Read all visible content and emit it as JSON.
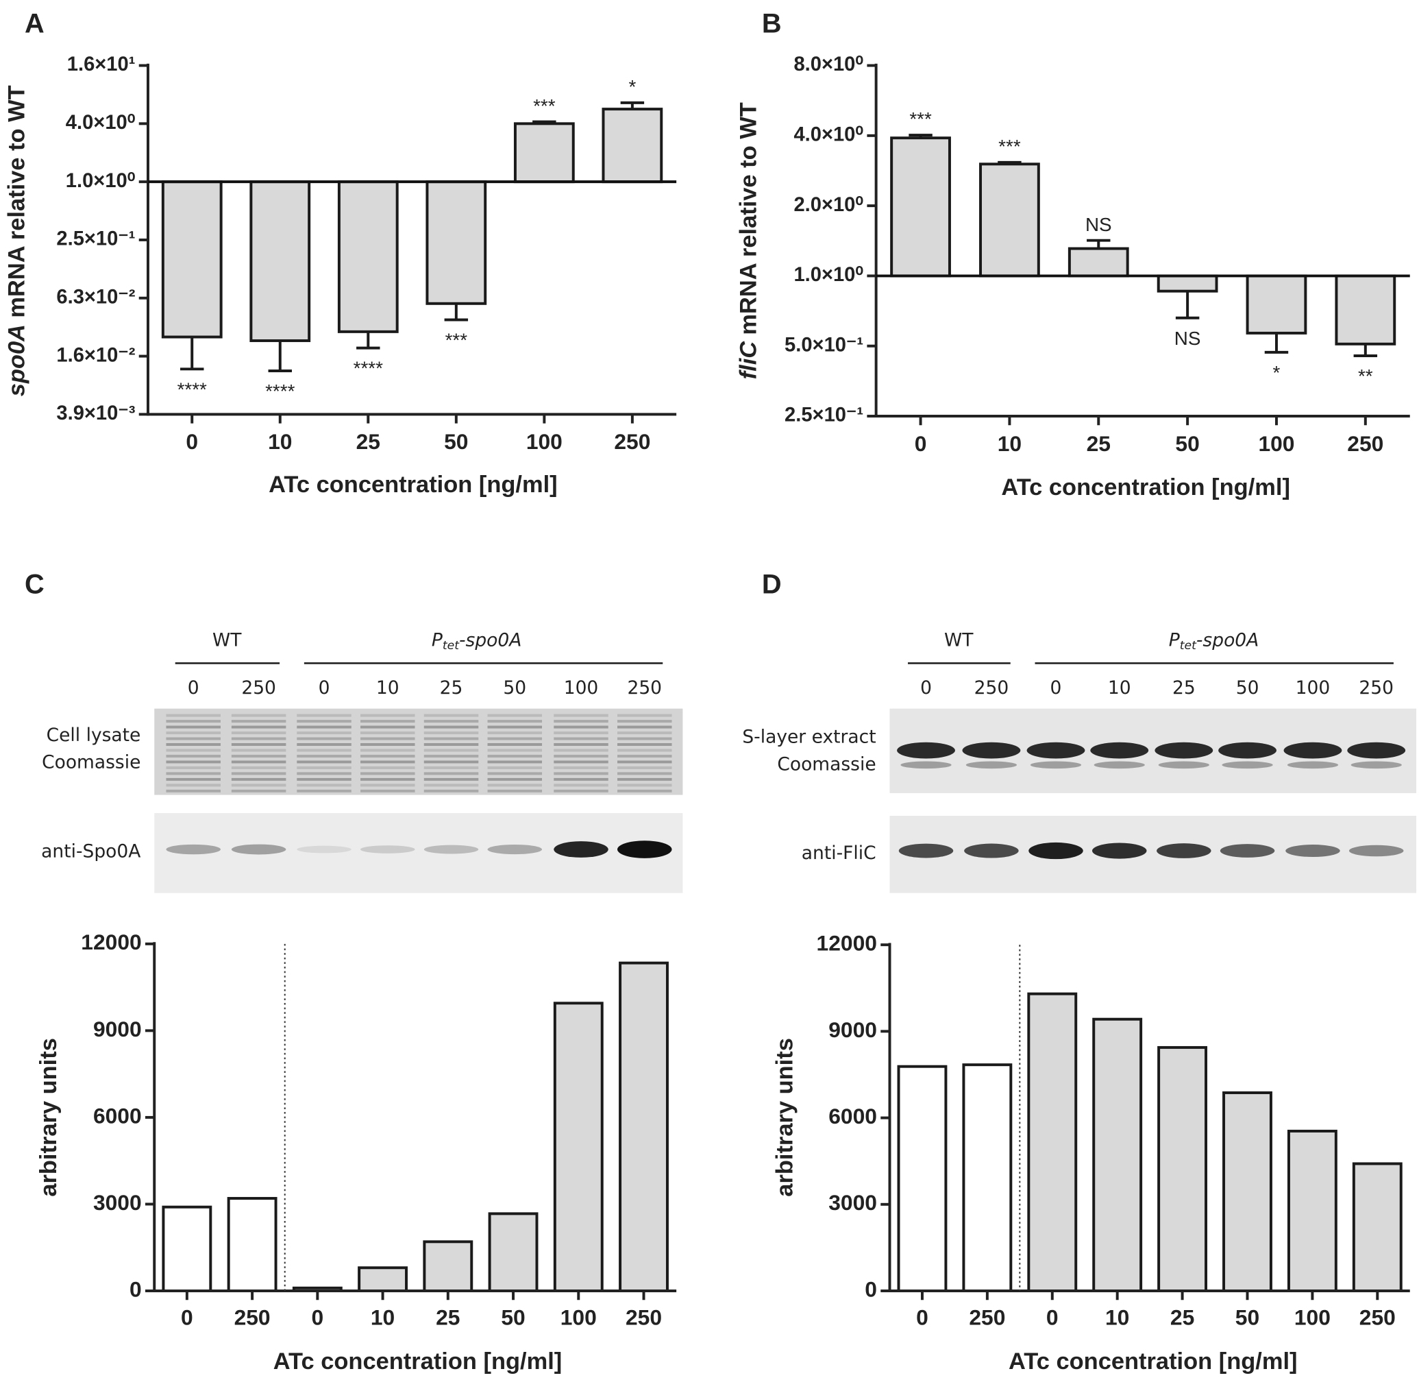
{
  "chart_data": [
    {
      "panel": "A",
      "type": "bar",
      "log": true,
      "ylabel": [
        "spo0A",
        "mRNA relative to WT"
      ],
      "xlabel": "ATc concentration [ng/ml]",
      "categories": [
        "0",
        "10",
        "25",
        "50",
        "100",
        "250"
      ],
      "values": [
        0.0247,
        0.0226,
        0.028,
        0.0548,
        4.0,
        5.66
      ],
      "errors": [
        0.0132,
        0.0116,
        0.009,
        0.0176,
        0.18,
        0.92
      ],
      "annotations": [
        "****",
        "****",
        "****",
        "***",
        "***",
        "*"
      ],
      "colors": [
        "#d9d9d9",
        "#d9d9d9",
        "#d9d9d9",
        "#d9d9d9",
        "#d9d9d9",
        "#d9d9d9"
      ],
      "ylim": [
        0.00390625,
        16
      ],
      "yticks": [
        {
          "value": 16,
          "label": "1.6×10¹"
        },
        {
          "value": 4,
          "label": "4.0×10⁰"
        },
        {
          "value": 1,
          "label": "1.0×10⁰"
        },
        {
          "value": 0.25,
          "label": "2.5×10⁻¹"
        },
        {
          "value": 0.0625,
          "label": "6.3×10⁻²"
        },
        {
          "value": 0.015625,
          "label": "1.6×10⁻²"
        },
        {
          "value": 0.00390625,
          "label": "3.9×10⁻³"
        }
      ]
    },
    {
      "panel": "B",
      "type": "bar",
      "log": true,
      "ylabel": [
        "fliC",
        "mRNA relative to WT"
      ],
      "xlabel": "ATc concentration [ng/ml]",
      "categories": [
        "0",
        "10",
        "25",
        "50",
        "100",
        "250"
      ],
      "values": [
        3.91,
        3.02,
        1.31,
        0.86,
        0.568,
        0.51
      ],
      "errors": [
        0.11,
        0.05,
        0.11,
        0.2,
        0.098,
        0.056
      ],
      "annotations": [
        "***",
        "***",
        "NS",
        "NS",
        "*",
        "**"
      ],
      "colors": [
        "#d9d9d9",
        "#d9d9d9",
        "#d9d9d9",
        "#d9d9d9",
        "#d9d9d9",
        "#d9d9d9"
      ],
      "ylim": [
        0.25,
        8
      ],
      "yticks": [
        {
          "value": 8,
          "label": "8.0×10⁰"
        },
        {
          "value": 4,
          "label": "4.0×10⁰"
        },
        {
          "value": 2,
          "label": "2.0×10⁰"
        },
        {
          "value": 1,
          "label": "1.0×10⁰"
        },
        {
          "value": 0.5,
          "label": "5.0×10⁻¹"
        },
        {
          "value": 0.25,
          "label": "2.5×10⁻¹"
        }
      ]
    },
    {
      "panel": "C",
      "type": "bar",
      "log": false,
      "ylabel": [
        "arbitrary units"
      ],
      "xlabel": "ATc concentration [ng/ml]",
      "categories": [
        "0",
        "250",
        "0",
        "10",
        "25",
        "50",
        "100",
        "250"
      ],
      "values": [
        2900,
        3200,
        100,
        800,
        1700,
        2670,
        9950,
        11340
      ],
      "colors": [
        "#ffffff",
        "#ffffff",
        "#d9d9d9",
        "#d9d9d9",
        "#d9d9d9",
        "#d9d9d9",
        "#d9d9d9",
        "#d9d9d9"
      ],
      "ylim": [
        0,
        12000
      ],
      "yticks": [
        0,
        3000,
        6000,
        9000,
        12000
      ]
    },
    {
      "panel": "D",
      "type": "bar",
      "log": false,
      "ylabel": [
        "arbitrary units"
      ],
      "xlabel": "ATc concentration [ng/ml]",
      "categories": [
        "0",
        "250",
        "0",
        "10",
        "25",
        "50",
        "100",
        "250"
      ],
      "values": [
        7780,
        7840,
        10300,
        9420,
        8440,
        6870,
        5540,
        4410
      ],
      "colors": [
        "#ffffff",
        "#ffffff",
        "#d9d9d9",
        "#d9d9d9",
        "#d9d9d9",
        "#d9d9d9",
        "#d9d9d9",
        "#d9d9d9"
      ],
      "ylim": [
        0,
        12000
      ],
      "yticks": [
        0,
        3000,
        6000,
        9000,
        12000
      ]
    }
  ],
  "blots": [
    {
      "groups": [
        [
          "WT"
        ],
        [
          "P",
          "tet",
          "-spo0A"
        ]
      ],
      "lanes": [
        "0",
        "250",
        "0",
        "10",
        "25",
        "50",
        "100",
        "250"
      ],
      "rows": [
        [
          "Cell lysate",
          "Coomassie"
        ],
        [
          "anti-Spo0A"
        ]
      ]
    },
    {
      "groups": [
        [
          "WT"
        ],
        [
          "P",
          "tet",
          "-spo0A"
        ]
      ],
      "lanes": [
        "0",
        "250",
        "0",
        "10",
        "25",
        "50",
        "100",
        "250"
      ],
      "rows": [
        [
          "S-layer extract",
          "Coomassie"
        ],
        [
          "anti-FliC"
        ]
      ]
    }
  ]
}
